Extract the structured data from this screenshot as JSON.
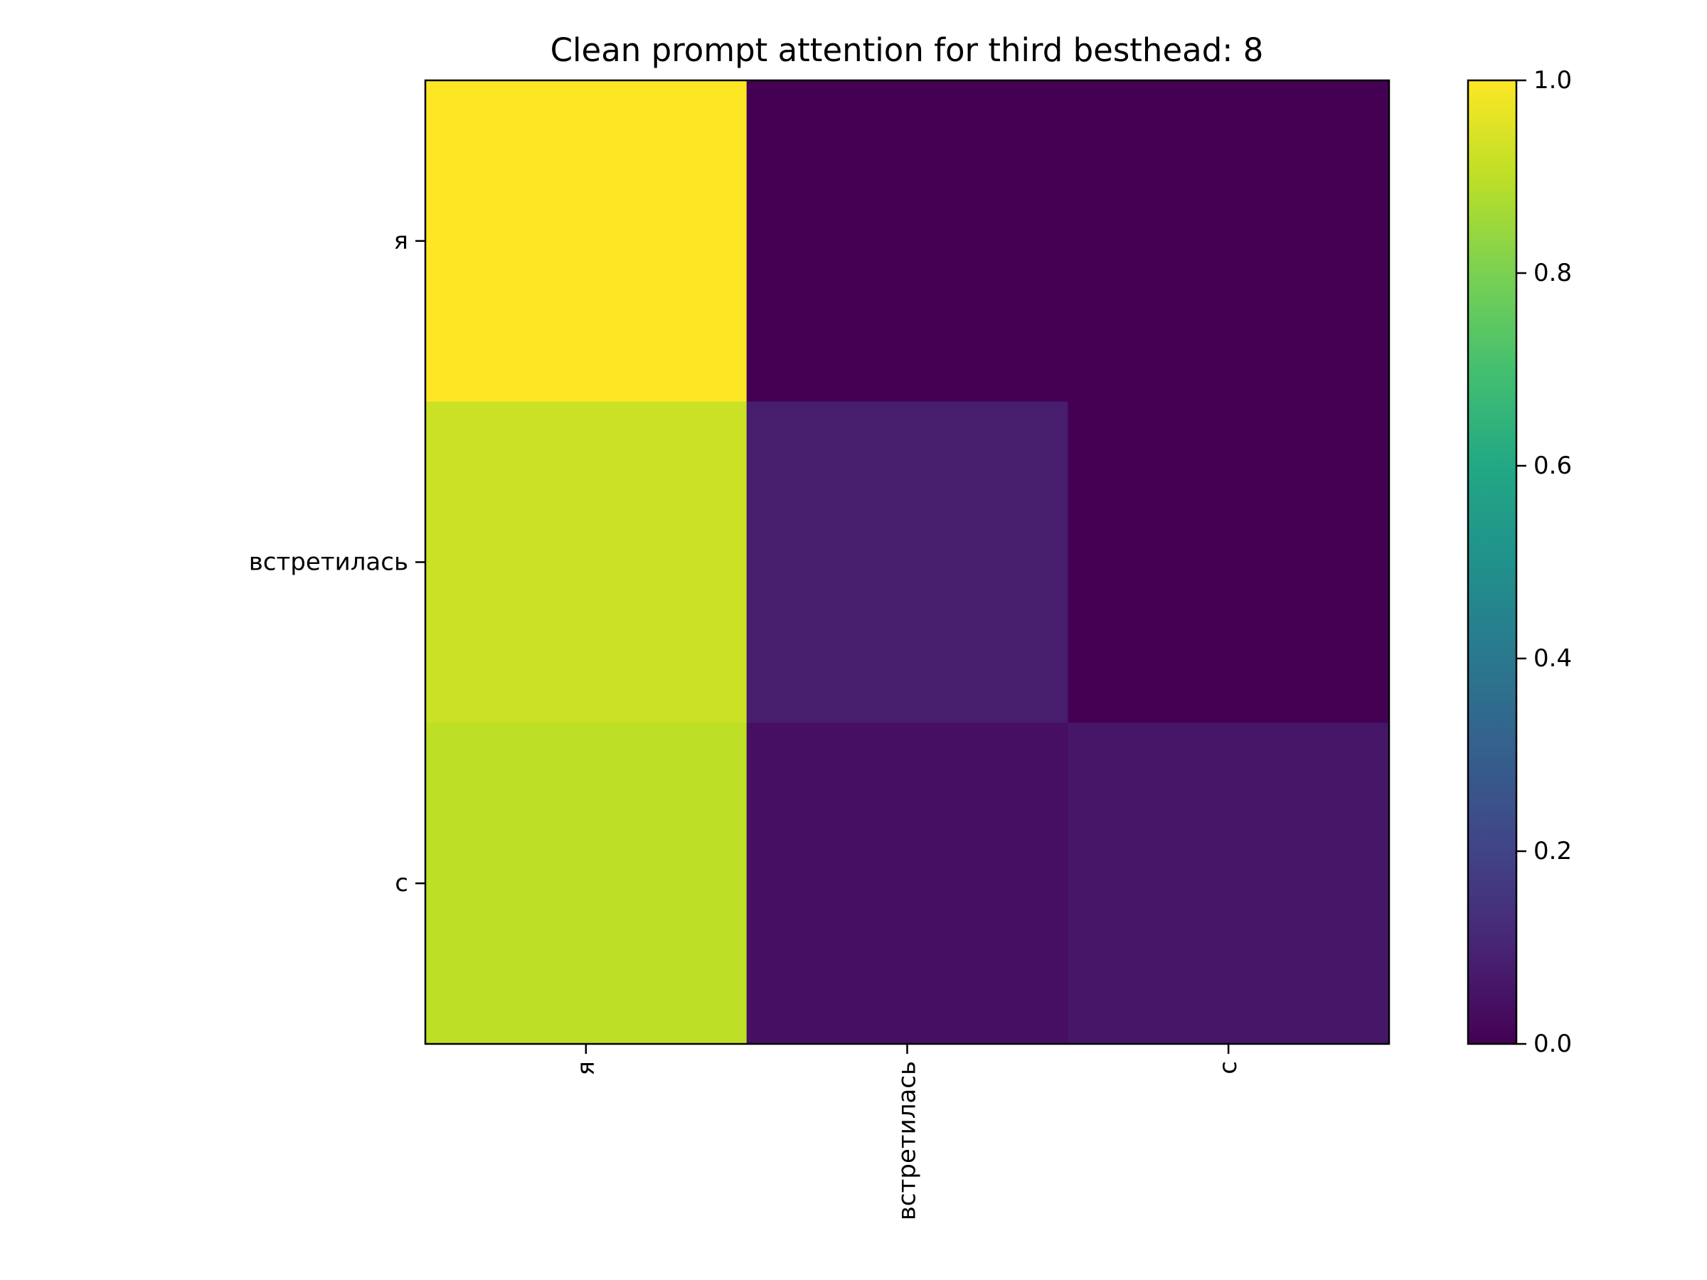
{
  "chart_data": {
    "type": "heatmap",
    "title": "Clean prompt attention for third besthead: 8",
    "x_labels": [
      "я",
      "встретилась",
      "с"
    ],
    "y_labels": [
      "я",
      "встретилась",
      "с"
    ],
    "values": [
      [
        1.0,
        0.0,
        0.0
      ],
      [
        0.92,
        0.08,
        0.0
      ],
      [
        0.9,
        0.04,
        0.06
      ]
    ],
    "colorbar": {
      "min": 0.0,
      "max": 1.0,
      "ticks": [
        "0.0",
        "0.2",
        "0.4",
        "0.6",
        "0.8",
        "1.0"
      ],
      "colormap": "viridis"
    },
    "xlabel": "",
    "ylabel": "",
    "grid": false
  }
}
